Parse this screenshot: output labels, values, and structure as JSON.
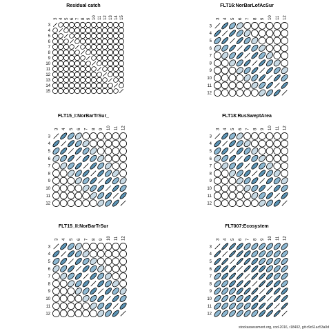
{
  "credit": "stockassessment.org, cod-2016, r18402, git:c9c61ac53a0d",
  "colors": {
    "ellipse_stroke": "#000000",
    "dark_fill": "#5b93b4",
    "mid_fill": "#8db8d2",
    "light_fill": "#c9dbe6",
    "empty_fill": "#ffffff"
  },
  "chart_data": [
    {
      "type": "correlation_matrix",
      "title": "Residual catch",
      "labels": [
        "3",
        "4",
        "5",
        "6",
        "7",
        "8",
        "9",
        "10",
        "11",
        "12",
        "13",
        "14",
        "15"
      ],
      "corr": {
        "r1": 0.1,
        "r2": 0.05,
        "r3": 0.03,
        "rest": 0.02
      }
    },
    {
      "type": "correlation_matrix",
      "title": "FLT16:NorBarLofAcSur",
      "labels": [
        "3",
        "4",
        "5",
        "6",
        "7",
        "8",
        "9",
        "10",
        "11",
        "12"
      ],
      "corr": {
        "r1": 0.8,
        "r2": 0.55,
        "r3": 0.35,
        "rest": 0.05
      }
    },
    {
      "type": "correlation_matrix",
      "title": "FLT15_I:NorBarTrSur_",
      "labels": [
        "3",
        "4",
        "5",
        "6",
        "7",
        "8",
        "9",
        "10",
        "11",
        "12"
      ],
      "corr": {
        "r1": 0.75,
        "r2": 0.55,
        "r3": 0.4,
        "rest": 0.05
      }
    },
    {
      "type": "correlation_matrix",
      "title": "FLT18:RusSweptArea",
      "labels": [
        "3",
        "4",
        "5",
        "6",
        "7",
        "8",
        "9",
        "10",
        "11",
        "12"
      ],
      "corr": {
        "r1": 0.7,
        "r2": 0.5,
        "r3": 0.35,
        "rest": 0.05
      }
    },
    {
      "type": "correlation_matrix",
      "title": "FLT15_II:NorBarTrSur",
      "labels": [
        "3",
        "4",
        "5",
        "6",
        "7",
        "8",
        "9",
        "10",
        "11",
        "12"
      ],
      "corr": {
        "r1": 0.7,
        "r2": 0.5,
        "r3": 0.35,
        "rest": 0.05
      }
    },
    {
      "type": "correlation_matrix",
      "title": "FLT007:Ecosystem",
      "labels": [
        "3",
        "4",
        "5",
        "6",
        "7",
        "8",
        "9",
        "10",
        "11",
        "12"
      ],
      "corr": {
        "r1": 0.9,
        "r2": 0.85,
        "r3": 0.75,
        "rest": 0.6
      }
    }
  ]
}
